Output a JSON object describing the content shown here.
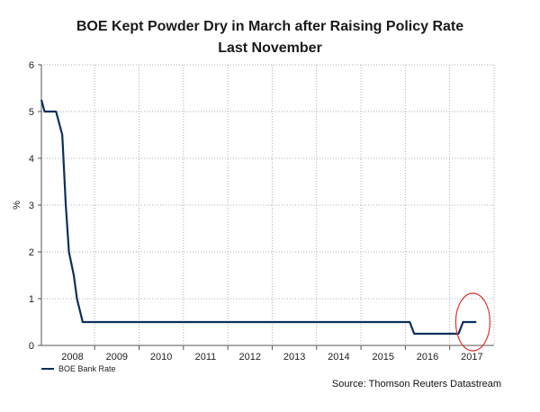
{
  "chart_data": {
    "type": "line",
    "title": "BOE Kept Powder Dry in March after Raising Policy Rate",
    "subtitle": "Last November",
    "xlabel": "",
    "ylabel": "%",
    "ylim": [
      0,
      6
    ],
    "xlim": [
      2007.8,
      2018.0
    ],
    "yticks": [
      "0",
      "1",
      "2",
      "3",
      "4",
      "5",
      "6"
    ],
    "xticks": [
      "2008",
      "2009",
      "2010",
      "2011",
      "2012",
      "2013",
      "2014",
      "2015",
      "2016",
      "2017"
    ],
    "grid": true,
    "legend_position": "bottom-left",
    "series": [
      {
        "name": "BOE Bank Rate",
        "color": "#0b2f5c",
        "x": [
          2007.8,
          2007.87,
          2008.13,
          2008.27,
          2008.35,
          2008.42,
          2008.53,
          2008.6,
          2008.73,
          2008.75,
          2016.1,
          2016.2,
          2017.2,
          2017.3,
          2017.6
        ],
        "y": [
          5.25,
          5.0,
          5.0,
          4.5,
          3.0,
          2.0,
          1.5,
          1.0,
          0.5,
          0.5,
          0.5,
          0.25,
          0.25,
          0.5,
          0.5
        ]
      }
    ],
    "annotation": "highlight-circle-latest"
  },
  "source": "Source: Thomson Reuters Datastream"
}
